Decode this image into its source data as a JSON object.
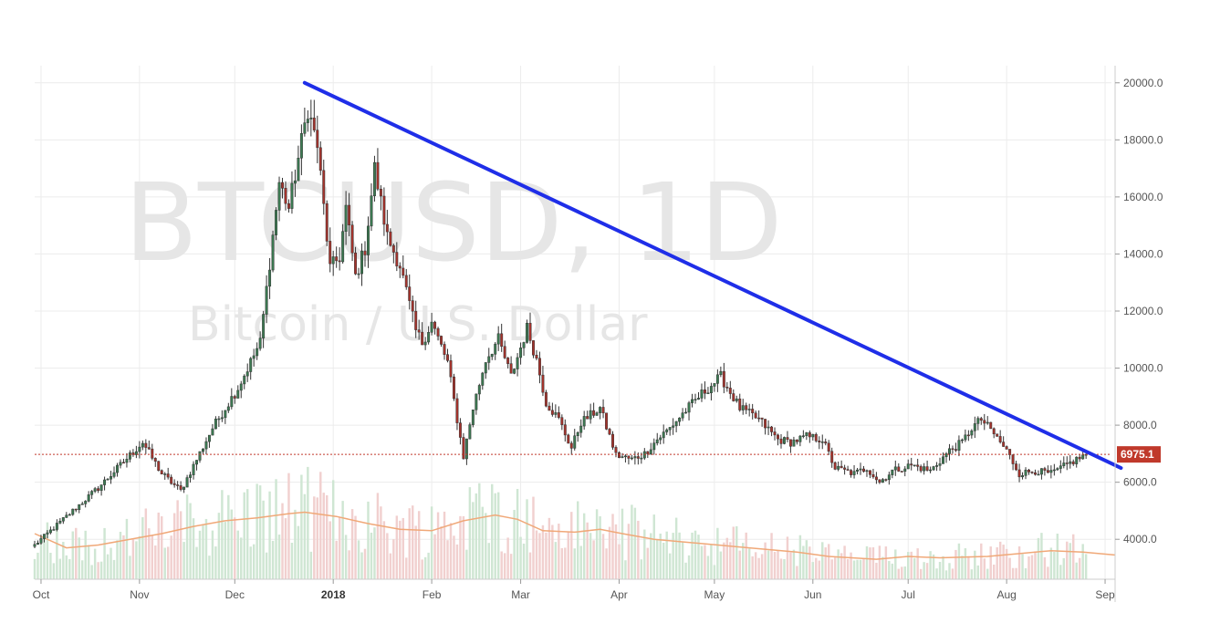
{
  "chart_data": {
    "type": "candlestick",
    "symbol_watermark": "BTCUSD, 1D",
    "description_watermark": "Bitcoin / U.S. Dollar",
    "y_axis": {
      "ticks": [
        "20000.0",
        "18000.0",
        "16000.0",
        "14000.0",
        "12000.0",
        "10000.0",
        "8000.0",
        "6000.0",
        "4000.0"
      ],
      "tick_values": [
        20000,
        18000,
        16000,
        14000,
        12000,
        10000,
        8000,
        6000,
        4000
      ],
      "range": [
        2600,
        20600
      ],
      "position": "right"
    },
    "x_axis": {
      "ticks": [
        "Oct",
        "Nov",
        "Dec",
        "2018",
        "Feb",
        "Mar",
        "Apr",
        "May",
        "Jun",
        "Jul",
        "Aug",
        "Sep"
      ],
      "tick_days": [
        2,
        33,
        63,
        94,
        125,
        153,
        184,
        214,
        245,
        275,
        306,
        337
      ],
      "bold_ticks": [
        "2018"
      ],
      "start": "2017-09-30",
      "range": [
        0,
        339
      ]
    },
    "grid": true,
    "current_price": {
      "value": 6975.1,
      "label": "6975.1",
      "color": "#c0392b"
    },
    "trendline": {
      "color": "#1f2ee8",
      "from": {
        "day": 85,
        "value": 20000
      },
      "to": {
        "day": 342,
        "value": 6500
      }
    },
    "price_anchors": [
      [
        0,
        3800
      ],
      [
        20,
        5800
      ],
      [
        34,
        7400
      ],
      [
        40,
        6300
      ],
      [
        46,
        5700
      ],
      [
        56,
        7900
      ],
      [
        64,
        9300
      ],
      [
        71,
        10900
      ],
      [
        77,
        16500
      ],
      [
        80,
        15600
      ],
      [
        86,
        19100
      ],
      [
        89,
        17800
      ],
      [
        93,
        13500
      ],
      [
        96,
        13900
      ],
      [
        98,
        15600
      ],
      [
        101,
        13200
      ],
      [
        104,
        14200
      ],
      [
        107,
        17000
      ],
      [
        111,
        14600
      ],
      [
        115,
        13600
      ],
      [
        120,
        11300
      ],
      [
        122,
        10900
      ],
      [
        125,
        11600
      ],
      [
        130,
        10200
      ],
      [
        133,
        8200
      ],
      [
        135,
        6900
      ],
      [
        138,
        8600
      ],
      [
        142,
        10300
      ],
      [
        146,
        11000
      ],
      [
        150,
        9700
      ],
      [
        155,
        11400
      ],
      [
        158,
        10300
      ],
      [
        161,
        8800
      ],
      [
        165,
        8200
      ],
      [
        169,
        7200
      ],
      [
        172,
        8100
      ],
      [
        178,
        8600
      ],
      [
        183,
        6950
      ],
      [
        188,
        6800
      ],
      [
        192,
        7000
      ],
      [
        196,
        7500
      ],
      [
        200,
        7900
      ],
      [
        204,
        8400
      ],
      [
        210,
        9100
      ],
      [
        216,
        9700
      ],
      [
        222,
        8600
      ],
      [
        228,
        8200
      ],
      [
        234,
        7500
      ],
      [
        238,
        7400
      ],
      [
        243,
        7600
      ],
      [
        248,
        7500
      ],
      [
        252,
        6500
      ],
      [
        258,
        6300
      ],
      [
        262,
        6500
      ],
      [
        266,
        6000
      ],
      [
        270,
        6400
      ],
      [
        276,
        6600
      ],
      [
        282,
        6400
      ],
      [
        288,
        7100
      ],
      [
        292,
        7400
      ],
      [
        295,
        7900
      ],
      [
        298,
        8200
      ],
      [
        302,
        7700
      ],
      [
        306,
        7100
      ],
      [
        310,
        6300
      ],
      [
        315,
        6400
      ],
      [
        320,
        6300
      ],
      [
        328,
        6800
      ],
      [
        331,
        6975
      ]
    ],
    "volume_ma": {
      "color": "#f0a878",
      "anchors": [
        [
          0,
          4200
        ],
        [
          10,
          3700
        ],
        [
          20,
          3800
        ],
        [
          30,
          4000
        ],
        [
          40,
          4200
        ],
        [
          50,
          4450
        ],
        [
          60,
          4650
        ],
        [
          70,
          4750
        ],
        [
          80,
          4900
        ],
        [
          85,
          4950
        ],
        [
          95,
          4800
        ],
        [
          105,
          4550
        ],
        [
          115,
          4350
        ],
        [
          125,
          4300
        ],
        [
          135,
          4650
        ],
        [
          145,
          4850
        ],
        [
          152,
          4700
        ],
        [
          160,
          4300
        ],
        [
          170,
          4250
        ],
        [
          178,
          4350
        ],
        [
          185,
          4200
        ],
        [
          195,
          4000
        ],
        [
          210,
          3850
        ],
        [
          225,
          3700
        ],
        [
          240,
          3550
        ],
        [
          250,
          3400
        ],
        [
          265,
          3300
        ],
        [
          275,
          3400
        ],
        [
          285,
          3350
        ],
        [
          300,
          3400
        ],
        [
          310,
          3500
        ],
        [
          320,
          3600
        ],
        [
          330,
          3550
        ],
        [
          340,
          3450
        ]
      ]
    },
    "colors": {
      "up": "#3c7a52",
      "down": "#a5332c",
      "vol_up": "#cfe6d3",
      "vol_down": "#f1d0cf"
    }
  }
}
